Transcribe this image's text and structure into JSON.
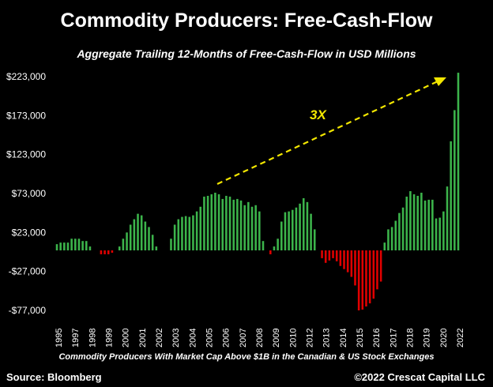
{
  "title": "Commodity Producers: Free-Cash-Flow",
  "subtitle": "Aggregate Trailing 12-Months of Free-Cash-Flow in USD Millions",
  "footnote": "Commodity Producers With Market Cap Above $1B in the Canadian & US Stock Exchanges",
  "source": "Source: Bloomberg",
  "credit": "©2022 Crescat Capital LLC",
  "colors": {
    "positive": "#3cb44b",
    "negative": "#e00000",
    "arrow": "#f2e600",
    "background": "#000000"
  },
  "chart_data": {
    "type": "bar",
    "title": "Commodity Producers: Free-Cash-Flow",
    "subtitle": "Aggregate Trailing 12-Months of Free-Cash-Flow in USD Millions",
    "ylim": [
      -77000,
      233000
    ],
    "yticks": [
      -77000,
      -27000,
      23000,
      73000,
      123000,
      173000,
      223000
    ],
    "ytick_labels": [
      "-$77,000",
      "-$27,000",
      "$23,000",
      "$73,000",
      "$123,000",
      "$173,000",
      "$223,000"
    ],
    "xtick_labels": [
      "1995",
      "1997",
      "1998",
      "1999",
      "2000",
      "2001",
      "2002",
      "2003",
      "2004",
      "2005",
      "2006",
      "2007",
      "2008",
      "2009",
      "2010",
      "2012",
      "2013",
      "2014",
      "2015",
      "2016",
      "2017",
      "2018",
      "2019",
      "2020",
      "2022"
    ],
    "x_start": 1995.0,
    "x_step": 0.25,
    "values": [
      8000,
      10000,
      10000,
      10000,
      15000,
      15000,
      15000,
      12000,
      12000,
      5000,
      0,
      0,
      -5000,
      -5000,
      -5000,
      -3000,
      0,
      5000,
      15000,
      23000,
      33000,
      40000,
      47000,
      45000,
      37000,
      30000,
      20000,
      5000,
      0,
      0,
      0,
      15000,
      33000,
      40000,
      43000,
      44000,
      43000,
      45000,
      50000,
      56000,
      69000,
      70000,
      72000,
      74000,
      72000,
      66000,
      70000,
      69000,
      65000,
      66000,
      64000,
      58000,
      62000,
      56000,
      58000,
      50000,
      12000,
      0,
      -5000,
      5000,
      15000,
      37000,
      49000,
      50000,
      52000,
      55000,
      60000,
      67000,
      62000,
      47000,
      27000,
      0,
      -10000,
      -16000,
      -13000,
      -10000,
      -14000,
      -20000,
      -24000,
      -28000,
      -34000,
      -45000,
      -77000,
      -76000,
      -72000,
      -68000,
      -62000,
      -50000,
      -40000,
      10000,
      27000,
      30000,
      38000,
      48000,
      55000,
      69000,
      76000,
      72000,
      70000,
      74000,
      64000,
      65000,
      65000,
      41000,
      42000,
      50000,
      82000,
      140000,
      180000,
      228000
    ],
    "annotations": [
      {
        "text": "3X",
        "type": "dashed-arrow"
      }
    ]
  }
}
